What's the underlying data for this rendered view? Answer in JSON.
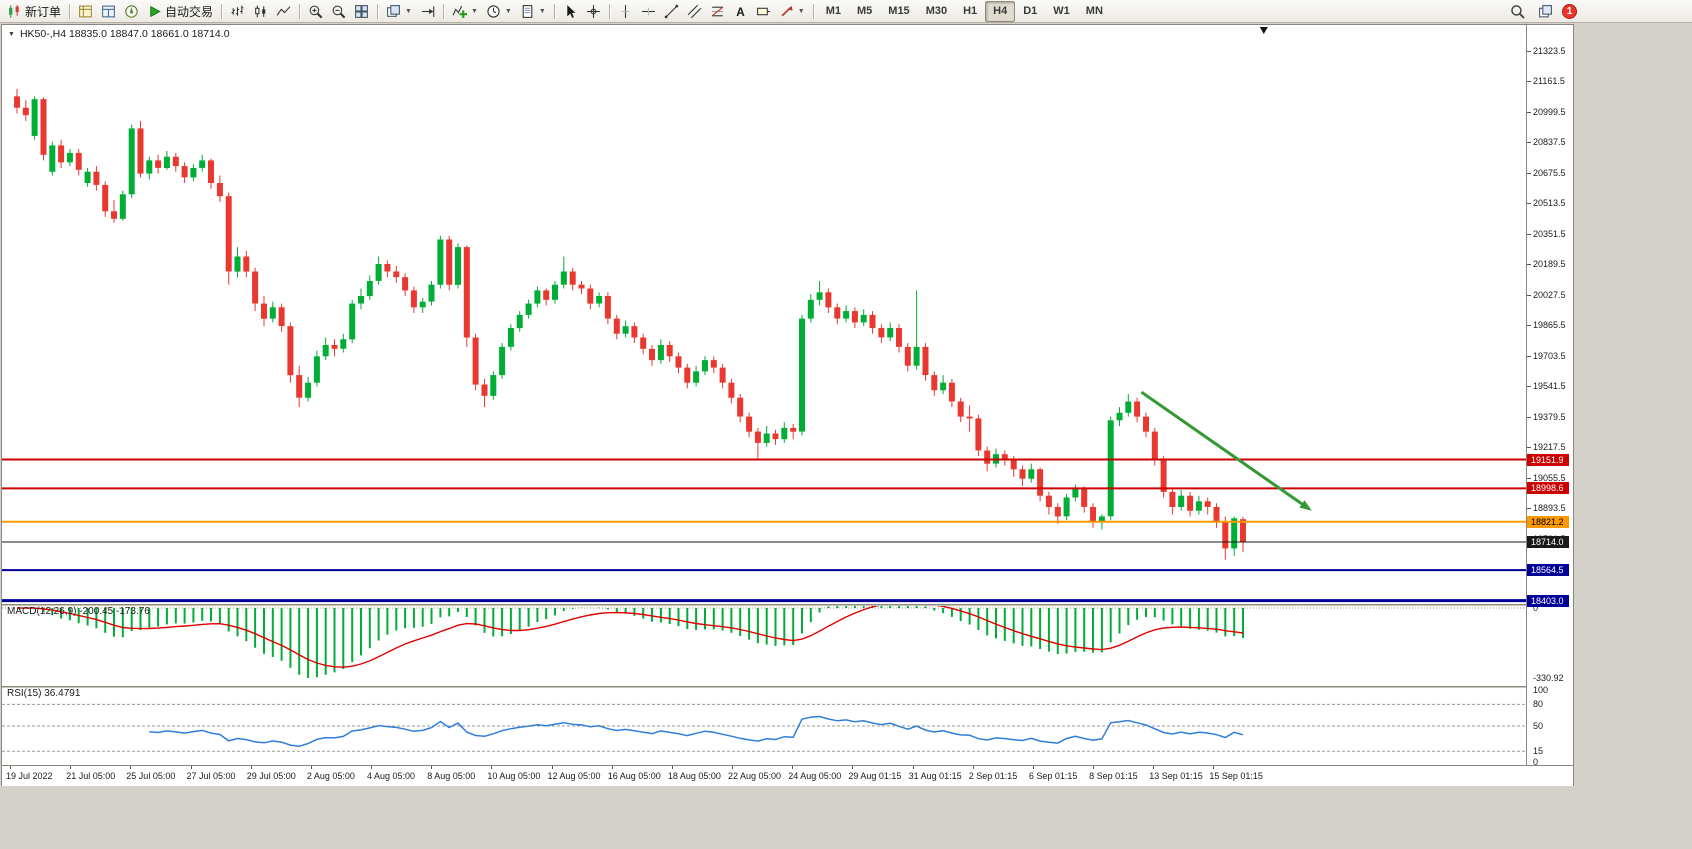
{
  "colors": {
    "up": "#00ad35",
    "down": "#e8382f",
    "macd_histogram": "#00ad35",
    "macd_signal": "#e00000",
    "rsi_line": "#2f7ed8",
    "arrow": "#339933"
  },
  "toolbar": {
    "groups": [
      {
        "name": "g-order",
        "items": [
          {
            "name": "new-order-button",
            "icon": "new-order",
            "label": "新订单"
          }
        ]
      },
      {
        "name": "g-panels",
        "items": [
          {
            "name": "market-watch-button",
            "icon": "market-watch"
          },
          {
            "name": "data-window-button",
            "icon": "data-window"
          },
          {
            "name": "navigator-button",
            "icon": "navigator"
          },
          {
            "name": "autotrading-button",
            "icon": "autotrading",
            "label": "自动交易"
          }
        ]
      },
      {
        "name": "g-chart-type",
        "items": [
          {
            "name": "bar-chart-button",
            "icon": "bar-chart"
          },
          {
            "name": "candlestick-button",
            "icon": "candlestick"
          },
          {
            "name": "line-chart-button",
            "icon": "line-chart"
          }
        ]
      },
      {
        "name": "g-zoom",
        "items": [
          {
            "name": "zoom-in-button",
            "icon": "zoom-in"
          },
          {
            "name": "zoom-out-button",
            "icon": "zoom-out"
          },
          {
            "name": "tile-windows-button",
            "icon": "tile-windows"
          }
        ]
      },
      {
        "name": "g-arrange",
        "items": [
          {
            "name": "auto-arrange-button",
            "icon": "auto-arrange",
            "dropdown": true
          },
          {
            "name": "chart-shift-button",
            "icon": "chart-shift"
          }
        ]
      },
      {
        "name": "g-insert",
        "items": [
          {
            "name": "indicators-button",
            "icon": "indicators",
            "dropdown": true
          },
          {
            "name": "periods-button",
            "icon": "periods",
            "dropdown": true
          },
          {
            "name": "templates-button",
            "icon": "templates",
            "dropdown": true
          }
        ]
      },
      {
        "name": "g-cursor",
        "items": [
          {
            "name": "cursor-button",
            "icon": "cursor"
          },
          {
            "name": "crosshair-button",
            "icon": "crosshair"
          }
        ]
      },
      {
        "name": "g-objects",
        "items": [
          {
            "name": "vertical-line-button",
            "icon": "vertical-line"
          },
          {
            "name": "horizontal-line-button",
            "icon": "horizontal-line"
          },
          {
            "name": "trendline-button",
            "icon": "trendline"
          },
          {
            "name": "channel-button",
            "icon": "channel"
          },
          {
            "name": "fibonacci-button",
            "icon": "fibonacci"
          },
          {
            "name": "text-button",
            "icon": "text"
          },
          {
            "name": "label-button",
            "icon": "label"
          },
          {
            "name": "arrows-button",
            "icon": "arrows",
            "dropdown": true
          }
        ]
      },
      {
        "name": "g-timeframes",
        "items": [
          {
            "name": "tf-m1",
            "label": "M1",
            "tf": true
          },
          {
            "name": "tf-m5",
            "label": "M5",
            "tf": true
          },
          {
            "name": "tf-m15",
            "label": "M15",
            "tf": true
          },
          {
            "name": "tf-m30",
            "label": "M30",
            "tf": true
          },
          {
            "name": "tf-h1",
            "label": "H1",
            "tf": true
          },
          {
            "name": "tf-h4",
            "label": "H4",
            "tf": true,
            "active": true
          },
          {
            "name": "tf-d1",
            "label": "D1",
            "tf": true
          },
          {
            "name": "tf-w1",
            "label": "W1",
            "tf": true
          },
          {
            "name": "tf-mn",
            "label": "MN",
            "tf": true
          }
        ]
      }
    ],
    "right": [
      {
        "name": "search-button",
        "icon": "search"
      },
      {
        "name": "windows-button",
        "icon": "windows"
      },
      {
        "name": "notification-badge",
        "badge": "1"
      }
    ]
  },
  "chart": {
    "title": {
      "dropdown_glyph": "▼",
      "text": "HK50-,H4 18835.0 18847.0 18661.0 18714.0"
    },
    "hlines": [
      {
        "price": 19151.9,
        "color": "#cc0000",
        "width": 2
      },
      {
        "price": 18998.6,
        "color": "#cc0000",
        "width": 2
      },
      {
        "price": 18821.2,
        "color": "#ff9900",
        "width": 2
      },
      {
        "price": 18714.0,
        "color": "#1a1a1a",
        "width": 1
      },
      {
        "price": 18564.5,
        "color": "#000099",
        "width": 2
      },
      {
        "price": 18403.0,
        "color": "#000099",
        "width": 3
      }
    ],
    "arrow": {
      "start": {
        "bar": 127.5,
        "price": 19510
      },
      "end": {
        "bar": 146.8,
        "price": 18880
      },
      "color": "#339933",
      "width": 3
    },
    "shift_marker_bar": 141.7,
    "price_scale": {
      "labels": [
        "21323.5",
        "21161.5",
        "20999.5",
        "20837.5",
        "20675.5",
        "20513.5",
        "20351.5",
        "20189.5",
        "20027.5",
        "19865.5",
        "19703.5",
        "19541.5",
        "19379.5",
        "19217.5",
        "19055.5",
        "18893.5",
        "18731.5"
      ],
      "badges": [
        {
          "label": "19151.9",
          "price": 19151.9,
          "bg": "#cc0000",
          "fg": "#ffffff"
        },
        {
          "label": "18998.6",
          "price": 18998.6,
          "bg": "#cc0000",
          "fg": "#ffffff"
        },
        {
          "label": "18821.2",
          "price": 18821.2,
          "bg": "#ff9900",
          "fg": "#000000"
        },
        {
          "label": "18714.0",
          "price": 18714.0,
          "bg": "#1a1a1a",
          "fg": "#ffffff"
        },
        {
          "label": "18564.5",
          "price": 18564.5,
          "bg": "#000099",
          "fg": "#ffffff"
        },
        {
          "label": "18403.0",
          "price": 18403.0,
          "bg": "#000099",
          "fg": "#ffffff"
        }
      ]
    },
    "time_axis": [
      "19 Jul 2022",
      "21 Jul 05:00",
      "25 Jul 05:00",
      "27 Jul 05:00",
      "29 Jul 05:00",
      "2 Aug 05:00",
      "4 Aug 05:00",
      "8 Aug 05:00",
      "10 Aug 05:00",
      "12 Aug 05:00",
      "16 Aug 05:00",
      "18 Aug 05:00",
      "22 Aug 05:00",
      "24 Aug 05:00",
      "29 Aug 01:15",
      "31 Aug 01:15",
      "2 Sep 01:15",
      "6 Sep 01:15",
      "8 Sep 01:15",
      "13 Sep 01:15",
      "15 Sep 01:15"
    ]
  },
  "chart_data": {
    "type": "candlestick",
    "symbol": "HK50-",
    "timeframe": "H4",
    "last_ohlc": {
      "open": 18835.0,
      "high": 18847.0,
      "low": 18661.0,
      "close": 18714.0
    },
    "candles": [
      [
        21080,
        21120,
        20990,
        21020
      ],
      [
        21020,
        21060,
        20950,
        20980
      ],
      [
        20870,
        21080,
        20850,
        21065
      ],
      [
        21065,
        21075,
        20740,
        20770
      ],
      [
        20680,
        20840,
        20660,
        20820
      ],
      [
        20820,
        20850,
        20700,
        20730
      ],
      [
        20730,
        20800,
        20710,
        20780
      ],
      [
        20780,
        20800,
        20660,
        20690
      ],
      [
        20620,
        20700,
        20600,
        20680
      ],
      [
        20680,
        20710,
        20580,
        20610
      ],
      [
        20610,
        20630,
        20440,
        20470
      ],
      [
        20470,
        20530,
        20410,
        20430
      ],
      [
        20430,
        20580,
        20420,
        20560
      ],
      [
        20560,
        20930,
        20540,
        20910
      ],
      [
        20910,
        20950,
        20650,
        20670
      ],
      [
        20670,
        20760,
        20640,
        20740
      ],
      [
        20740,
        20770,
        20670,
        20700
      ],
      [
        20700,
        20790,
        20690,
        20760
      ],
      [
        20760,
        20780,
        20680,
        20710
      ],
      [
        20710,
        20730,
        20620,
        20650
      ],
      [
        20650,
        20720,
        20630,
        20700
      ],
      [
        20700,
        20770,
        20680,
        20740
      ],
      [
        20740,
        20750,
        20590,
        20620
      ],
      [
        20620,
        20660,
        20520,
        20550
      ],
      [
        20550,
        20570,
        20080,
        20150
      ],
      [
        20150,
        20280,
        20120,
        20230
      ],
      [
        20230,
        20260,
        20120,
        20150
      ],
      [
        20150,
        20170,
        19940,
        19980
      ],
      [
        19980,
        20020,
        19860,
        19900
      ],
      [
        19900,
        19990,
        19880,
        19960
      ],
      [
        19960,
        19980,
        19830,
        19860
      ],
      [
        19860,
        19880,
        19560,
        19600
      ],
      [
        19600,
        19650,
        19430,
        19480
      ],
      [
        19480,
        19590,
        19460,
        19560
      ],
      [
        19560,
        19730,
        19540,
        19700
      ],
      [
        19700,
        19800,
        19680,
        19760
      ],
      [
        19760,
        19790,
        19700,
        19740
      ],
      [
        19740,
        19820,
        19720,
        19790
      ],
      [
        19790,
        20000,
        19770,
        19980
      ],
      [
        19980,
        20060,
        19950,
        20020
      ],
      [
        20020,
        20130,
        20000,
        20100
      ],
      [
        20100,
        20230,
        20080,
        20190
      ],
      [
        20190,
        20210,
        20120,
        20150
      ],
      [
        20150,
        20180,
        20090,
        20120
      ],
      [
        20120,
        20140,
        20020,
        20050
      ],
      [
        20050,
        20070,
        19930,
        19960
      ],
      [
        19960,
        20010,
        19930,
        19990
      ],
      [
        19990,
        20100,
        19970,
        20080
      ],
      [
        20080,
        20340,
        20060,
        20320
      ],
      [
        20320,
        20340,
        20050,
        20080
      ],
      [
        20080,
        20300,
        20060,
        20280
      ],
      [
        20280,
        20290,
        19750,
        19800
      ],
      [
        19800,
        19820,
        19520,
        19550
      ],
      [
        19550,
        19580,
        19430,
        19490
      ],
      [
        19490,
        19620,
        19470,
        19600
      ],
      [
        19600,
        19770,
        19580,
        19750
      ],
      [
        19750,
        19870,
        19730,
        19850
      ],
      [
        19850,
        19940,
        19830,
        19920
      ],
      [
        19920,
        20000,
        19900,
        19980
      ],
      [
        19980,
        20070,
        19960,
        20050
      ],
      [
        20050,
        20060,
        19970,
        20000
      ],
      [
        20000,
        20100,
        19980,
        20080
      ],
      [
        20080,
        20230,
        20060,
        20150
      ],
      [
        20150,
        20170,
        20050,
        20080
      ],
      [
        20080,
        20100,
        20030,
        20060
      ],
      [
        20060,
        20080,
        19950,
        19980
      ],
      [
        19980,
        20040,
        19960,
        20020
      ],
      [
        20020,
        20040,
        19870,
        19900
      ],
      [
        19900,
        19920,
        19790,
        19820
      ],
      [
        19820,
        19890,
        19800,
        19860
      ],
      [
        19860,
        19880,
        19770,
        19800
      ],
      [
        19800,
        19820,
        19710,
        19740
      ],
      [
        19740,
        19760,
        19650,
        19680
      ],
      [
        19680,
        19790,
        19660,
        19760
      ],
      [
        19760,
        19780,
        19670,
        19700
      ],
      [
        19700,
        19720,
        19610,
        19640
      ],
      [
        19640,
        19660,
        19530,
        19560
      ],
      [
        19560,
        19650,
        19540,
        19620
      ],
      [
        19620,
        19700,
        19600,
        19680
      ],
      [
        19680,
        19700,
        19610,
        19640
      ],
      [
        19640,
        19660,
        19530,
        19560
      ],
      [
        19560,
        19580,
        19450,
        19480
      ],
      [
        19480,
        19500,
        19350,
        19380
      ],
      [
        19380,
        19400,
        19270,
        19300
      ],
      [
        19300,
        19320,
        19150,
        19240
      ],
      [
        19240,
        19330,
        19220,
        19290
      ],
      [
        19290,
        19310,
        19230,
        19260
      ],
      [
        19260,
        19350,
        19240,
        19320
      ],
      [
        19320,
        19340,
        19260,
        19300
      ],
      [
        19300,
        19920,
        19280,
        19900
      ],
      [
        19900,
        20030,
        19880,
        20000
      ],
      [
        20000,
        20100,
        19970,
        20040
      ],
      [
        20040,
        20060,
        19930,
        19960
      ],
      [
        19960,
        19980,
        19870,
        19900
      ],
      [
        19900,
        19970,
        19880,
        19940
      ],
      [
        19940,
        19960,
        19850,
        19880
      ],
      [
        19880,
        19950,
        19860,
        19920
      ],
      [
        19920,
        19940,
        19820,
        19850
      ],
      [
        19850,
        19870,
        19770,
        19800
      ],
      [
        19800,
        19880,
        19780,
        19850
      ],
      [
        19850,
        19870,
        19720,
        19750
      ],
      [
        19750,
        19770,
        19620,
        19650
      ],
      [
        19650,
        20050,
        19630,
        19750
      ],
      [
        19750,
        19770,
        19570,
        19600
      ],
      [
        19600,
        19620,
        19490,
        19520
      ],
      [
        19520,
        19600,
        19500,
        19560
      ],
      [
        19560,
        19580,
        19430,
        19460
      ],
      [
        19460,
        19480,
        19350,
        19380
      ],
      [
        19380,
        19440,
        19300,
        19370
      ],
      [
        19370,
        19390,
        19170,
        19200
      ],
      [
        19200,
        19220,
        19090,
        19130
      ],
      [
        19130,
        19210,
        19110,
        19180
      ],
      [
        19180,
        19200,
        19120,
        19150
      ],
      [
        19150,
        19170,
        19060,
        19100
      ],
      [
        19100,
        19120,
        19010,
        19050
      ],
      [
        19050,
        19130,
        19030,
        19100
      ],
      [
        19100,
        19110,
        18930,
        18960
      ],
      [
        18960,
        18980,
        18860,
        18900
      ],
      [
        18900,
        18920,
        18810,
        18850
      ],
      [
        18850,
        18970,
        18830,
        18950
      ],
      [
        18950,
        19020,
        18930,
        19000
      ],
      [
        19000,
        19010,
        18870,
        18900
      ],
      [
        18900,
        18920,
        18790,
        18820
      ],
      [
        18820,
        18860,
        18780,
        18850
      ],
      [
        18850,
        19380,
        18830,
        19360
      ],
      [
        19360,
        19430,
        19330,
        19400
      ],
      [
        19400,
        19500,
        19380,
        19460
      ],
      [
        19460,
        19480,
        19350,
        19380
      ],
      [
        19380,
        19400,
        19270,
        19300
      ],
      [
        19300,
        19320,
        19120,
        19150
      ],
      [
        19150,
        19170,
        18950,
        18980
      ],
      [
        18980,
        19000,
        18860,
        18900
      ],
      [
        18900,
        18990,
        18880,
        18960
      ],
      [
        18960,
        18980,
        18850,
        18880
      ],
      [
        18880,
        18960,
        18860,
        18930
      ],
      [
        18930,
        18950,
        18860,
        18900
      ],
      [
        18900,
        18920,
        18790,
        18820
      ],
      [
        18820,
        18850,
        18620,
        18680
      ],
      [
        18680,
        18850,
        18640,
        18840
      ],
      [
        18835,
        18847,
        18661,
        18714
      ]
    ],
    "indicators": [
      {
        "name": "MACD",
        "params": [
          12,
          26,
          9
        ],
        "display": "MACD(12,26,9) -200.45 -173.76",
        "values": [
          "-200.45",
          "-173.76"
        ],
        "scale_labels": [
          "0",
          "-330.92"
        ]
      },
      {
        "name": "RSI",
        "params": [
          15
        ],
        "display": "RSI(15) 36.4791",
        "value": 36.4791,
        "levels": [
          80,
          50,
          15
        ],
        "scale_labels": [
          "100",
          "80",
          "50",
          "15",
          "0"
        ]
      }
    ]
  }
}
